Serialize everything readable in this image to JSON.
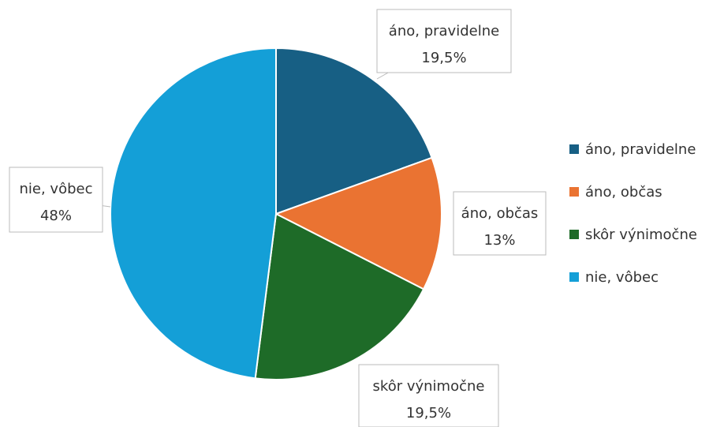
{
  "chart_data": {
    "type": "pie",
    "categories": [
      "áno, pravidelne",
      "áno, občas",
      "skôr výnimočne",
      "nie, vôbec"
    ],
    "values": [
      19.5,
      13,
      19.5,
      48
    ],
    "value_labels": [
      "19,5%",
      "13%",
      "19,5%",
      "48%"
    ],
    "colors": [
      "#175f84",
      "#ea7332",
      "#1e6b28",
      "#149fd7"
    ],
    "legend": "right"
  }
}
